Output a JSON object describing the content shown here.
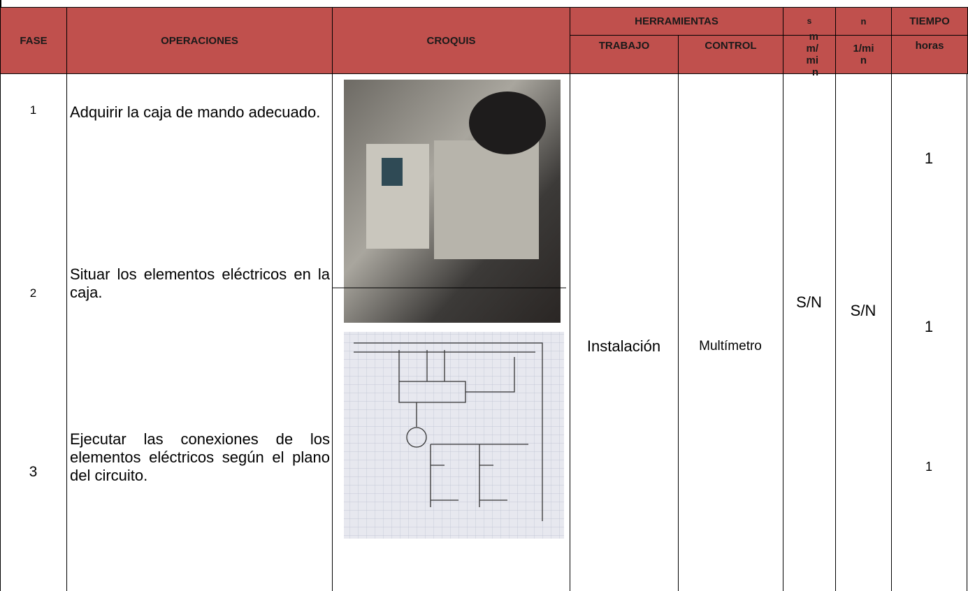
{
  "table": {
    "columns": {
      "fase": "FASE",
      "operaciones": "OPERACIONES",
      "croquis": "CROQUIS",
      "herramientas": "HERRAMIENTAS",
      "trabajo": "TRABAJO",
      "control": "CONTROL",
      "s": "s",
      "s_unit": "mm/min",
      "n": "n",
      "n_unit": "1/min",
      "tiempo": "TIEMPO",
      "tiempo_unit": "horas"
    },
    "rows": [
      {
        "fase": "1",
        "operacion": "Adquirir la caja de mando adecuado.",
        "tiempo": "1"
      },
      {
        "fase": "2",
        "operacion": "Situar los elementos eléctricos en la caja.",
        "tiempo": "1"
      },
      {
        "fase": "3",
        "operacion": "Ejecutar las conexiones de los elementos eléctricos según el plano del circuito.",
        "tiempo": "1"
      }
    ],
    "trabajo": "Instalación",
    "control": "Multímetro",
    "s": "S/N",
    "n": "S/N"
  }
}
